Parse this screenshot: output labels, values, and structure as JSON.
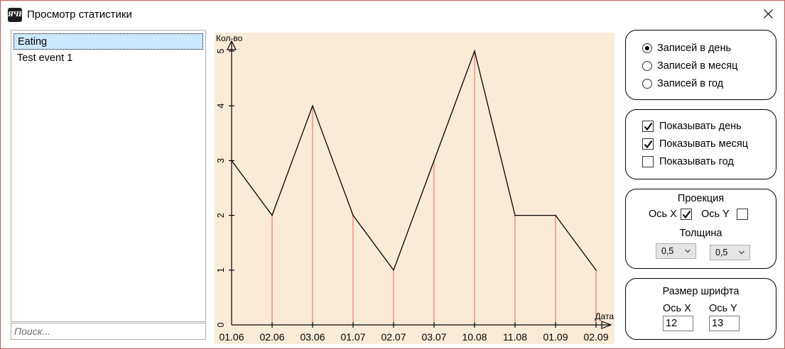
{
  "window": {
    "title": "Просмотр статистики",
    "icon_text": "ЯЧЕ",
    "close_symbol": "✕"
  },
  "events": {
    "items": [
      "Eating",
      "Test event 1"
    ],
    "selected": 0,
    "search_placeholder": "Поиск..."
  },
  "chart_data": {
    "type": "line",
    "categories": [
      "01.06",
      "02.06",
      "03.06",
      "01.07",
      "02.07",
      "03.07",
      "10.08",
      "11.08",
      "01.09",
      "02.09"
    ],
    "values": [
      3,
      2,
      4,
      2,
      1,
      3,
      5,
      2,
      2,
      1
    ],
    "ylabel": "Кол-во",
    "xlabel": "Дата",
    "yticks": [
      "0",
      "1",
      "2",
      "3",
      "4",
      "5"
    ],
    "ylim": [
      0,
      5
    ],
    "projection_x": true,
    "projection_y": false,
    "line_color": "#000000",
    "projection_color": "#ff0000",
    "background": "#faebd7"
  },
  "rate_group": {
    "options": [
      "Записей в день",
      "Записей в месяц",
      "Записей в год"
    ],
    "selected": 0
  },
  "show_group": {
    "options": [
      {
        "label": "Показывать день",
        "checked": true
      },
      {
        "label": "Показывать месяц",
        "checked": true
      },
      {
        "label": "Показывать год",
        "checked": false
      }
    ]
  },
  "projection_group": {
    "title": "Проекция",
    "axis_x_label": "Ось X",
    "axis_x_checked": true,
    "axis_y_label": "Ось Y",
    "axis_y_checked": false,
    "thickness_label": "Толщина",
    "thickness_x": "0,5",
    "thickness_y": "0,5"
  },
  "font_group": {
    "title": "Размер шрифта",
    "axis_x_label": "Ось X",
    "axis_y_label": "Ось Y",
    "size_x": "12",
    "size_y": "13"
  }
}
